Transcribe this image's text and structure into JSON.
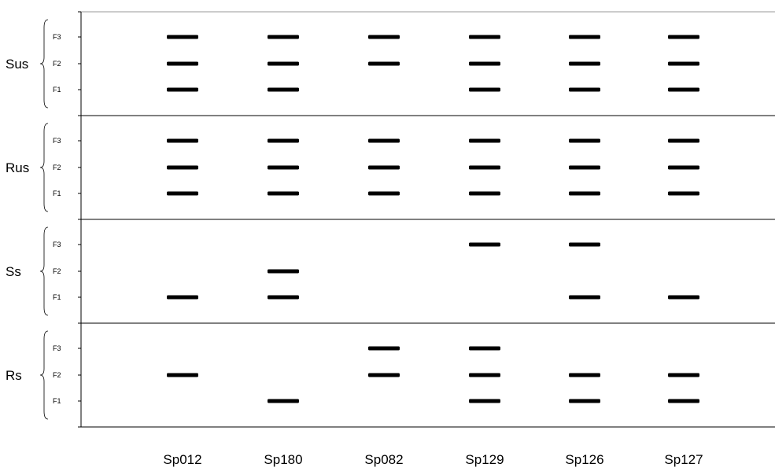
{
  "chart_data": {
    "type": "scatter",
    "description_kind": "presence/absence band pattern",
    "categories": [
      "Sp012",
      "Sp180",
      "Sp082",
      "Sp129",
      "Sp126",
      "Sp127"
    ],
    "groups": [
      {
        "label": "Sus",
        "levels": [
          "F3",
          "F2",
          "F1"
        ],
        "bands": {
          "F3": [
            1,
            1,
            1,
            1,
            1,
            1
          ],
          "F2": [
            1,
            1,
            1,
            1,
            1,
            1
          ],
          "F1": [
            1,
            1,
            0,
            1,
            1,
            1
          ]
        }
      },
      {
        "label": "Rus",
        "levels": [
          "F3",
          "F2",
          "F1"
        ],
        "bands": {
          "F3": [
            1,
            1,
            1,
            1,
            1,
            1
          ],
          "F2": [
            1,
            1,
            1,
            1,
            1,
            1
          ],
          "F1": [
            1,
            1,
            1,
            1,
            1,
            1
          ]
        }
      },
      {
        "label": "Ss",
        "levels": [
          "F3",
          "F2",
          "F1"
        ],
        "bands": {
          "F3": [
            0,
            0,
            0,
            1,
            1,
            0
          ],
          "F2": [
            0,
            1,
            0,
            0,
            0,
            0
          ],
          "F1": [
            1,
            1,
            0,
            0,
            1,
            1
          ]
        }
      },
      {
        "label": "Rs",
        "levels": [
          "F3",
          "F2",
          "F1"
        ],
        "bands": {
          "F3": [
            0,
            0,
            1,
            1,
            0,
            0
          ],
          "F2": [
            1,
            0,
            1,
            1,
            1,
            1
          ],
          "F1": [
            0,
            1,
            0,
            1,
            1,
            1
          ]
        }
      }
    ],
    "band_color": "#000000",
    "grid": false
  }
}
